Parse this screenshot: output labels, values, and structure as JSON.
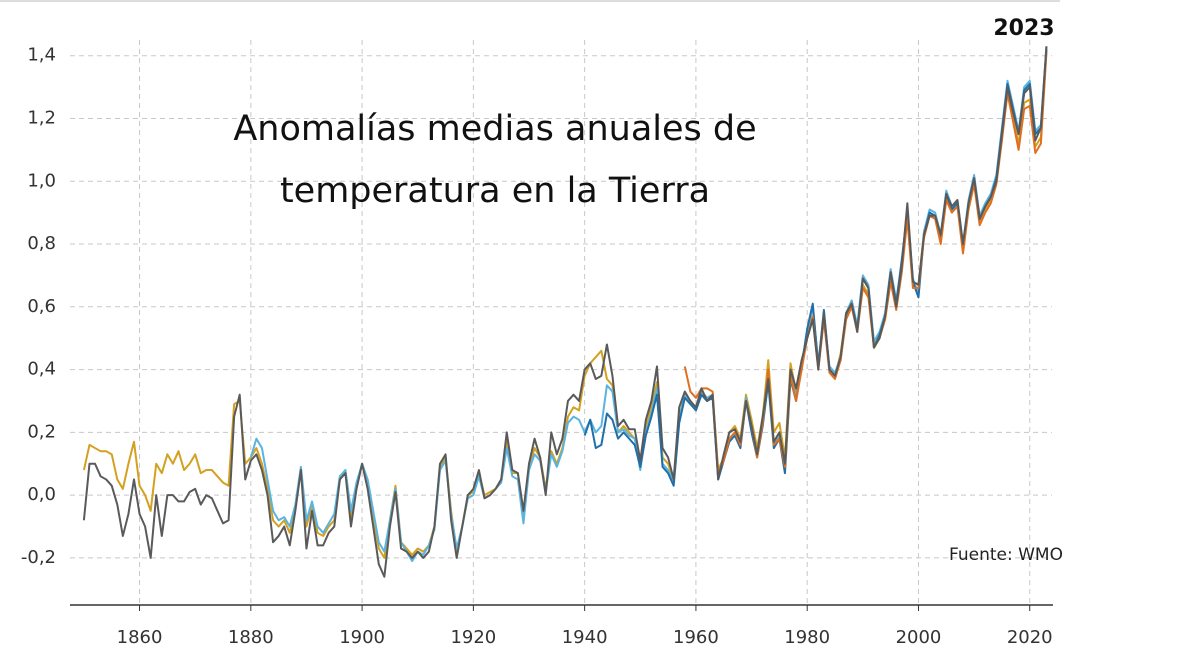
{
  "chart_data": {
    "type": "line",
    "title": "Anomalías medias anuales de temperatura en la Tierra",
    "annotations": [
      "2023",
      "Fuente: WMO"
    ],
    "xlim": [
      1847.5,
      2024
    ],
    "xticks": [
      1860,
      1880,
      1900,
      1920,
      1940,
      1960,
      1980,
      2000,
      2020
    ],
    "ylim": [
      -0.35,
      1.45
    ],
    "yticks": [
      {
        "value": -0.2,
        "label": "-0,2"
      },
      {
        "value": 0,
        "label": "0,0"
      },
      {
        "value": 0.2,
        "label": "0,2"
      },
      {
        "value": 0.4,
        "label": "0,4"
      },
      {
        "value": 0.6,
        "label": "0,6"
      },
      {
        "value": 0.8,
        "label": "0,8"
      },
      {
        "value": 1.0,
        "label": "1,0"
      },
      {
        "value": 1.2,
        "label": "1,2"
      },
      {
        "value": 1.4,
        "label": "1,4"
      }
    ],
    "grid": true,
    "x": [
      1850,
      1851,
      1852,
      1853,
      1854,
      1855,
      1856,
      1857,
      1858,
      1859,
      1860,
      1861,
      1862,
      1863,
      1864,
      1865,
      1866,
      1867,
      1868,
      1869,
      1870,
      1871,
      1872,
      1873,
      1874,
      1875,
      1876,
      1877,
      1878,
      1879,
      1880,
      1881,
      1882,
      1883,
      1884,
      1885,
      1886,
      1887,
      1888,
      1889,
      1890,
      1891,
      1892,
      1893,
      1894,
      1895,
      1896,
      1897,
      1898,
      1899,
      1900,
      1901,
      1902,
      1903,
      1904,
      1905,
      1906,
      1907,
      1908,
      1909,
      1910,
      1911,
      1912,
      1913,
      1914,
      1915,
      1916,
      1917,
      1918,
      1919,
      1920,
      1921,
      1922,
      1923,
      1924,
      1925,
      1926,
      1927,
      1928,
      1929,
      1930,
      1931,
      1932,
      1933,
      1934,
      1935,
      1936,
      1937,
      1938,
      1939,
      1940,
      1941,
      1942,
      1943,
      1944,
      1945,
      1946,
      1947,
      1948,
      1949,
      1950,
      1951,
      1952,
      1953,
      1954,
      1955,
      1956,
      1957,
      1958,
      1959,
      1960,
      1961,
      1962,
      1963,
      1964,
      1965,
      1966,
      1967,
      1968,
      1969,
      1970,
      1971,
      1972,
      1973,
      1974,
      1975,
      1976,
      1977,
      1978,
      1979,
      1980,
      1981,
      1982,
      1983,
      1984,
      1985,
      1986,
      1987,
      1988,
      1989,
      1990,
      1991,
      1992,
      1993,
      1994,
      1995,
      1996,
      1997,
      1998,
      1999,
      2000,
      2001,
      2002,
      2003,
      2004,
      2005,
      2006,
      2007,
      2008,
      2009,
      2010,
      2011,
      2012,
      2013,
      2014,
      2015,
      2016,
      2017,
      2018,
      2019,
      2020,
      2021,
      2022,
      2023
    ],
    "series": [
      {
        "color": "#d4a020",
        "values": [
          0.08,
          0.16,
          0.15,
          0.14,
          0.14,
          0.13,
          0.05,
          0.02,
          0.1,
          0.17,
          0.03,
          0.0,
          -0.05,
          0.1,
          0.07,
          0.13,
          0.1,
          0.14,
          0.08,
          0.1,
          0.13,
          0.07,
          0.08,
          0.08,
          0.06,
          0.04,
          0.03,
          0.29,
          0.3,
          0.1,
          0.12,
          0.15,
          0.1,
          0.02,
          -0.08,
          -0.1,
          -0.08,
          -0.12,
          -0.04,
          0.08,
          -0.1,
          -0.03,
          -0.12,
          -0.13,
          -0.1,
          -0.08,
          0.05,
          0.08,
          -0.07,
          0.03,
          0.1,
          0.04,
          -0.07,
          -0.17,
          -0.2,
          -0.08,
          0.03,
          -0.15,
          -0.17,
          -0.19,
          -0.17,
          -0.18,
          -0.16,
          -0.1,
          0.09,
          0.12,
          -0.05,
          -0.18,
          -0.1,
          0.0,
          0.01,
          0.07,
          0.0,
          0.01,
          0.02,
          0.05,
          0.17,
          0.07,
          0.07,
          -0.06,
          0.09,
          0.15,
          0.12,
          0.02,
          0.14,
          0.1,
          0.15,
          0.25,
          0.28,
          0.27,
          0.38,
          0.42,
          0.44,
          0.46,
          0.37,
          0.35,
          0.2,
          0.22,
          0.2,
          0.18,
          0.1,
          0.22,
          0.28,
          0.36,
          0.12,
          0.1,
          0.05,
          0.25,
          0.32,
          0.3,
          0.27,
          0.32,
          0.3,
          0.32,
          0.08,
          0.12,
          0.2,
          0.22,
          0.18,
          0.32,
          0.24,
          0.15,
          0.25,
          0.43,
          0.2,
          0.23,
          0.12,
          0.42,
          0.33,
          0.42,
          0.5,
          0.56,
          0.42,
          0.57,
          0.4,
          0.38,
          0.45,
          0.58,
          0.62,
          0.53,
          0.67,
          0.64,
          0.48,
          0.51,
          0.56,
          0.68,
          0.6,
          0.72,
          0.9,
          0.68,
          0.67,
          0.84,
          0.9,
          0.89,
          0.82,
          0.95,
          0.91,
          0.93,
          0.78,
          0.92,
          1.0,
          0.87,
          0.91,
          0.94,
          1.0,
          1.14,
          1.29,
          1.2,
          1.12,
          1.25,
          1.26,
          1.11,
          1.14,
          1.42
        ]
      },
      {
        "color": "#5ab4e0",
        "values": [
          null,
          null,
          null,
          null,
          null,
          null,
          null,
          null,
          null,
          null,
          null,
          null,
          null,
          null,
          null,
          null,
          null,
          null,
          null,
          null,
          null,
          null,
          null,
          null,
          null,
          null,
          null,
          null,
          null,
          null,
          0.12,
          0.18,
          0.15,
          0.05,
          -0.05,
          -0.08,
          -0.07,
          -0.1,
          -0.03,
          0.09,
          -0.08,
          -0.02,
          -0.1,
          -0.12,
          -0.09,
          -0.06,
          0.06,
          0.08,
          -0.05,
          0.04,
          0.1,
          0.05,
          -0.05,
          -0.15,
          -0.18,
          -0.08,
          0.02,
          -0.15,
          -0.18,
          -0.21,
          -0.18,
          -0.19,
          -0.16,
          -0.11,
          0.08,
          0.11,
          -0.06,
          -0.17,
          -0.1,
          -0.01,
          0.0,
          0.06,
          -0.01,
          0.0,
          0.02,
          0.04,
          0.15,
          0.06,
          0.05,
          -0.09,
          0.08,
          0.13,
          0.11,
          0.01,
          0.13,
          0.09,
          0.14,
          0.23,
          0.25,
          0.24,
          0.2,
          0.24,
          0.2,
          0.22,
          0.35,
          0.33,
          0.2,
          0.21,
          0.19,
          0.18,
          0.08,
          0.2,
          0.26,
          0.34,
          0.1,
          0.08,
          0.04,
          0.24,
          0.32,
          0.29,
          0.28,
          0.33,
          0.31,
          0.32,
          0.06,
          0.12,
          0.18,
          0.2,
          0.16,
          0.31,
          0.22,
          0.13,
          0.23,
          0.38,
          0.16,
          0.19,
          0.09,
          0.38,
          0.31,
          0.4,
          0.52,
          0.6,
          0.42,
          0.58,
          0.41,
          0.39,
          0.44,
          0.58,
          0.62,
          0.54,
          0.7,
          0.67,
          0.49,
          0.52,
          0.58,
          0.72,
          0.62,
          0.74,
          0.91,
          0.69,
          0.64,
          0.84,
          0.91,
          0.9,
          0.83,
          0.97,
          0.92,
          0.94,
          0.8,
          0.94,
          1.02,
          0.89,
          0.93,
          0.96,
          1.02,
          1.17,
          1.32,
          1.24,
          1.16,
          1.3,
          1.32,
          1.16,
          1.18,
          1.43
        ]
      },
      {
        "color": "#1f6fa8",
        "values": [
          null,
          null,
          null,
          null,
          null,
          null,
          null,
          null,
          null,
          null,
          null,
          null,
          null,
          null,
          null,
          null,
          null,
          null,
          null,
          null,
          null,
          null,
          null,
          null,
          null,
          null,
          null,
          null,
          null,
          null,
          null,
          null,
          null,
          null,
          null,
          null,
          null,
          null,
          null,
          null,
          null,
          null,
          null,
          null,
          null,
          null,
          null,
          null,
          null,
          null,
          null,
          null,
          null,
          null,
          null,
          null,
          null,
          null,
          null,
          null,
          null,
          null,
          null,
          null,
          null,
          null,
          null,
          null,
          null,
          null,
          null,
          null,
          null,
          null,
          null,
          null,
          null,
          null,
          null,
          null,
          null,
          null,
          null,
          null,
          null,
          null,
          null,
          null,
          null,
          null,
          0.19,
          0.24,
          0.15,
          0.16,
          0.26,
          0.24,
          0.18,
          0.2,
          0.18,
          0.16,
          0.09,
          0.19,
          0.25,
          0.32,
          0.09,
          0.07,
          0.03,
          0.23,
          0.31,
          0.29,
          0.27,
          0.32,
          0.3,
          0.31,
          0.05,
          0.11,
          0.17,
          0.19,
          0.15,
          0.3,
          0.2,
          0.12,
          0.22,
          0.36,
          0.15,
          0.18,
          0.07,
          0.37,
          0.3,
          0.41,
          0.53,
          0.61,
          0.41,
          0.59,
          0.4,
          0.38,
          0.43,
          0.57,
          0.61,
          0.53,
          0.69,
          0.66,
          0.47,
          0.51,
          0.57,
          0.71,
          0.61,
          0.75,
          0.9,
          0.68,
          0.63,
          0.83,
          0.9,
          0.89,
          0.82,
          0.96,
          0.91,
          0.93,
          0.79,
          0.93,
          1.01,
          0.88,
          0.92,
          0.95,
          1.01,
          1.16,
          1.31,
          1.23,
          1.15,
          1.29,
          1.31,
          1.15,
          1.17,
          1.42
        ]
      },
      {
        "color": "#e07020",
        "values": [
          null,
          null,
          null,
          null,
          null,
          null,
          null,
          null,
          null,
          null,
          null,
          null,
          null,
          null,
          null,
          null,
          null,
          null,
          null,
          null,
          null,
          null,
          null,
          null,
          null,
          null,
          null,
          null,
          null,
          null,
          null,
          null,
          null,
          null,
          null,
          null,
          null,
          null,
          null,
          null,
          null,
          null,
          null,
          null,
          null,
          null,
          null,
          null,
          null,
          null,
          null,
          null,
          null,
          null,
          null,
          null,
          null,
          null,
          null,
          null,
          null,
          null,
          null,
          null,
          null,
          null,
          null,
          null,
          null,
          null,
          null,
          null,
          null,
          null,
          null,
          null,
          null,
          null,
          null,
          null,
          null,
          null,
          null,
          null,
          null,
          null,
          null,
          null,
          null,
          null,
          null,
          null,
          null,
          null,
          null,
          null,
          null,
          null,
          null,
          null,
          null,
          null,
          null,
          null,
          null,
          null,
          null,
          null,
          0.41,
          0.33,
          0.31,
          0.34,
          0.34,
          0.33,
          0.07,
          0.11,
          0.18,
          0.2,
          0.16,
          0.3,
          0.22,
          0.12,
          0.23,
          0.4,
          0.16,
          0.18,
          0.09,
          0.38,
          0.3,
          0.4,
          0.5,
          0.57,
          0.4,
          0.56,
          0.39,
          0.37,
          0.43,
          0.56,
          0.6,
          0.52,
          0.66,
          0.63,
          0.47,
          0.5,
          0.56,
          0.68,
          0.59,
          0.71,
          0.88,
          0.66,
          0.66,
          0.82,
          0.89,
          0.88,
          0.8,
          0.94,
          0.9,
          0.92,
          0.77,
          0.91,
          0.99,
          0.86,
          0.9,
          0.93,
          0.99,
          1.13,
          1.28,
          1.19,
          1.1,
          1.23,
          1.24,
          1.09,
          1.12,
          1.41
        ]
      },
      {
        "color": "#5a5a5a",
        "values": [
          -0.08,
          0.1,
          0.1,
          0.06,
          0.05,
          0.03,
          -0.03,
          -0.13,
          -0.06,
          0.05,
          -0.06,
          -0.1,
          -0.2,
          0.0,
          -0.13,
          0.0,
          0.0,
          -0.02,
          -0.02,
          0.01,
          0.02,
          -0.03,
          0.0,
          -0.01,
          -0.05,
          -0.09,
          -0.08,
          0.25,
          0.32,
          0.05,
          0.11,
          0.13,
          0.08,
          0.0,
          -0.15,
          -0.13,
          -0.1,
          -0.16,
          -0.05,
          0.08,
          -0.17,
          -0.05,
          -0.16,
          -0.16,
          -0.12,
          -0.1,
          0.05,
          0.07,
          -0.1,
          0.02,
          0.1,
          0.02,
          -0.1,
          -0.22,
          -0.26,
          -0.1,
          0.01,
          -0.17,
          -0.18,
          -0.2,
          -0.18,
          -0.2,
          -0.18,
          -0.1,
          0.1,
          0.13,
          -0.08,
          -0.2,
          -0.1,
          0.0,
          0.02,
          0.08,
          -0.01,
          0.0,
          0.02,
          0.05,
          0.2,
          0.08,
          0.07,
          -0.05,
          0.1,
          0.18,
          0.12,
          0.0,
          0.2,
          0.13,
          0.18,
          0.3,
          0.32,
          0.3,
          0.4,
          0.42,
          0.37,
          0.38,
          0.48,
          0.38,
          0.22,
          0.24,
          0.21,
          0.21,
          0.11,
          0.24,
          0.3,
          0.41,
          0.15,
          0.12,
          0.05,
          0.28,
          0.33,
          0.3,
          0.28,
          0.34,
          0.3,
          0.32,
          0.05,
          0.13,
          0.2,
          0.21,
          0.17,
          0.3,
          0.22,
          0.13,
          0.25,
          0.37,
          0.17,
          0.2,
          0.1,
          0.4,
          0.34,
          0.43,
          0.5,
          0.56,
          0.4,
          0.58,
          0.4,
          0.38,
          0.44,
          0.58,
          0.61,
          0.52,
          0.69,
          0.66,
          0.47,
          0.5,
          0.57,
          0.71,
          0.6,
          0.73,
          0.93,
          0.68,
          0.67,
          0.83,
          0.89,
          0.89,
          0.83,
          0.96,
          0.92,
          0.94,
          0.8,
          0.93,
          1.01,
          0.88,
          0.92,
          0.95,
          1.0,
          1.15,
          1.3,
          1.22,
          1.15,
          1.28,
          1.3,
          1.13,
          1.17,
          1.43
        ]
      }
    ]
  }
}
